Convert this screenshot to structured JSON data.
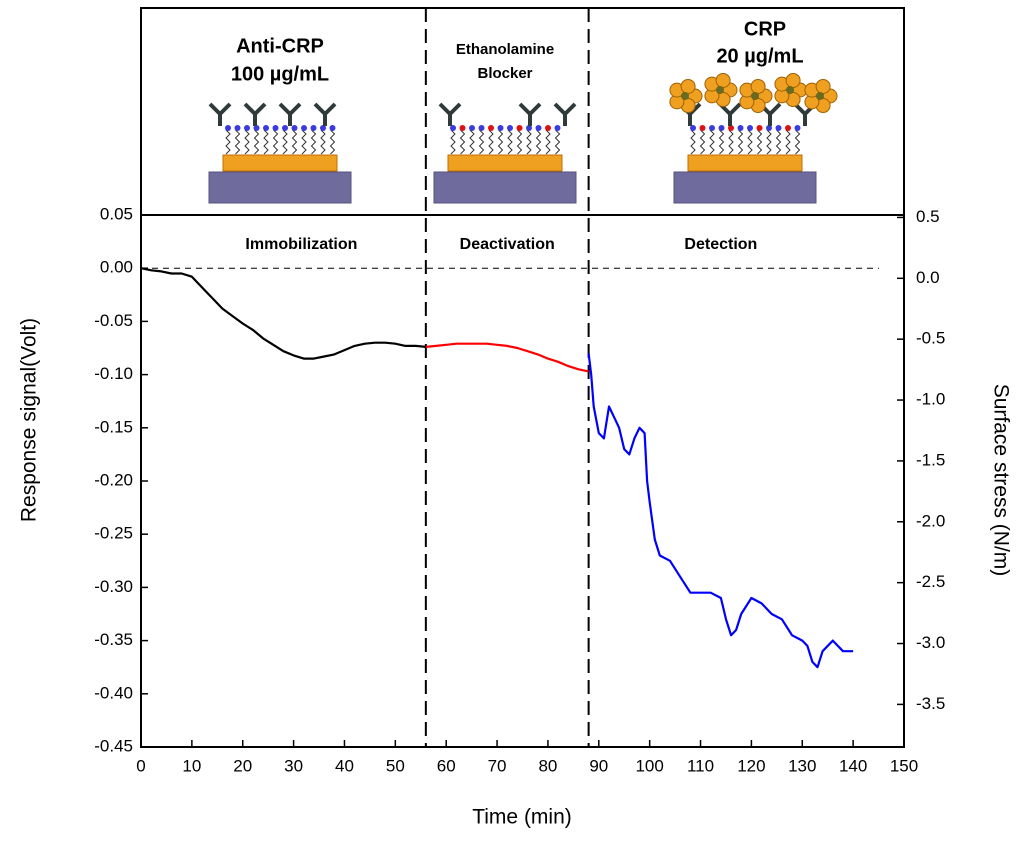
{
  "chart_data": {
    "type": "line",
    "xlabel": "Time (min)",
    "ylabel": "Response signal(Volt)",
    "y2label": "Surface stress (N/m)",
    "xlim": [
      0,
      150
    ],
    "xticks": [
      0,
      10,
      20,
      30,
      40,
      50,
      60,
      70,
      80,
      90,
      100,
      110,
      120,
      130,
      140,
      150
    ],
    "ylim": [
      -0.45,
      0.05
    ],
    "yticks": [
      0.05,
      {
        "value": 0,
        "label": "0.00"
      },
      -0.05,
      {
        "value": -0.1,
        "label": "-0.10"
      },
      -0.15,
      {
        "value": -0.2,
        "label": "-0.20"
      },
      -0.25,
      {
        "value": -0.3,
        "label": "-0.30"
      },
      -0.35,
      {
        "value": -0.4,
        "label": "-0.40"
      },
      -0.45
    ],
    "y2lim": [
      -3.85,
      0.52
    ],
    "y2ticks": [
      0.5,
      {
        "value": 0,
        "label": "0.0"
      },
      -0.5,
      {
        "value": -1,
        "label": "-1.0"
      },
      -1.5,
      {
        "value": -2,
        "label": "-2.0"
      },
      -2.5,
      {
        "value": -3,
        "label": "-3.0"
      },
      -3.5
    ],
    "reference_line": 0,
    "phase_boundaries": [
      56,
      88
    ],
    "phase_labels": [
      "Immobilization",
      "Deactivation",
      "Detection"
    ],
    "panel_labels": [
      [
        "Anti-CRP",
        "100 µg/mL"
      ],
      [
        "Ethanolamine",
        "Blocker"
      ],
      [
        "CRP",
        "20 µg/mL"
      ]
    ],
    "series": [
      {
        "color": "#000000",
        "x": [
          0,
          2,
          4,
          6,
          8,
          10,
          12,
          14,
          16,
          18,
          20,
          22,
          24,
          26,
          28,
          30,
          32,
          34,
          36,
          38,
          40,
          42,
          44,
          46,
          48,
          50,
          52,
          54,
          56
        ],
        "values": [
          0.0,
          -0.002,
          -0.003,
          -0.005,
          -0.005,
          -0.008,
          -0.018,
          -0.028,
          -0.038,
          -0.045,
          -0.052,
          -0.058,
          -0.066,
          -0.072,
          -0.078,
          -0.082,
          -0.085,
          -0.085,
          -0.083,
          -0.081,
          -0.077,
          -0.073,
          -0.071,
          -0.07,
          -0.07,
          -0.071,
          -0.073,
          -0.073,
          -0.074
        ]
      },
      {
        "color": "#ff0000",
        "x": [
          56,
          58,
          60,
          62,
          64,
          66,
          68,
          70,
          72,
          74,
          76,
          78,
          80,
          82,
          84,
          86,
          88
        ],
        "values": [
          -0.074,
          -0.073,
          -0.072,
          -0.071,
          -0.071,
          -0.071,
          -0.071,
          -0.072,
          -0.073,
          -0.075,
          -0.078,
          -0.081,
          -0.085,
          -0.088,
          -0.092,
          -0.095,
          -0.097
        ]
      },
      {
        "color": "#0000ff",
        "x": [
          88,
          88.5,
          89,
          90,
          91,
          92,
          93,
          94,
          95,
          96,
          97,
          98,
          99,
          99.5,
          100,
          101,
          102,
          104,
          106,
          108,
          110,
          112,
          114,
          115,
          116,
          117,
          118,
          120,
          122,
          124,
          126,
          128,
          130,
          131,
          132,
          133,
          134,
          136,
          138,
          140
        ],
        "values": [
          -0.08,
          -0.1,
          -0.13,
          -0.155,
          -0.16,
          -0.13,
          -0.14,
          -0.15,
          -0.17,
          -0.175,
          -0.16,
          -0.15,
          -0.155,
          -0.2,
          -0.22,
          -0.255,
          -0.27,
          -0.275,
          -0.29,
          -0.305,
          -0.305,
          -0.305,
          -0.31,
          -0.33,
          -0.345,
          -0.34,
          -0.325,
          -0.31,
          -0.315,
          -0.325,
          -0.33,
          -0.345,
          -0.35,
          -0.355,
          -0.37,
          -0.375,
          -0.36,
          -0.35,
          -0.36,
          -0.36
        ]
      }
    ]
  }
}
